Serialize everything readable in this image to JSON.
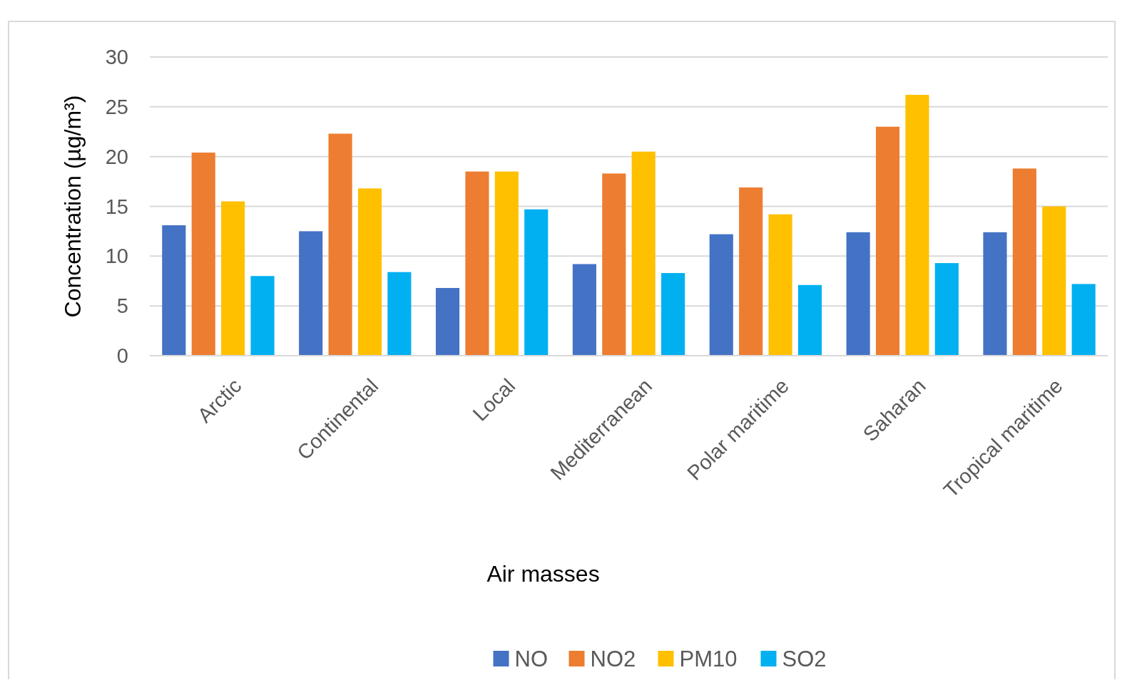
{
  "chart_data": {
    "type": "bar",
    "xlabel": "Air masses",
    "ylabel": "Concentration (µg/m³)",
    "categories": [
      "Arctic",
      "Continental",
      "Local",
      "Mediterranean",
      "Polar maritime",
      "Saharan",
      "Tropical maritime"
    ],
    "series": [
      {
        "name": "NO",
        "color": "#4472c4",
        "values": [
          13.1,
          12.5,
          6.8,
          9.2,
          12.2,
          12.4,
          12.4
        ]
      },
      {
        "name": "NO2",
        "color": "#ed7d31",
        "values": [
          20.4,
          22.3,
          18.5,
          18.3,
          16.9,
          23.0,
          18.8
        ]
      },
      {
        "name": "PM10",
        "color": "#ffc000",
        "values": [
          15.5,
          16.8,
          18.5,
          20.5,
          14.2,
          26.2,
          15.0
        ]
      },
      {
        "name": "SO2",
        "color": "#00b0f0",
        "values": [
          8.0,
          8.4,
          14.7,
          8.3,
          7.1,
          9.3,
          7.2
        ]
      }
    ],
    "ylim": [
      0,
      30
    ],
    "yticks": [
      0,
      5,
      10,
      15,
      20,
      25,
      30
    ],
    "grid": "y",
    "legend": "bottom"
  }
}
